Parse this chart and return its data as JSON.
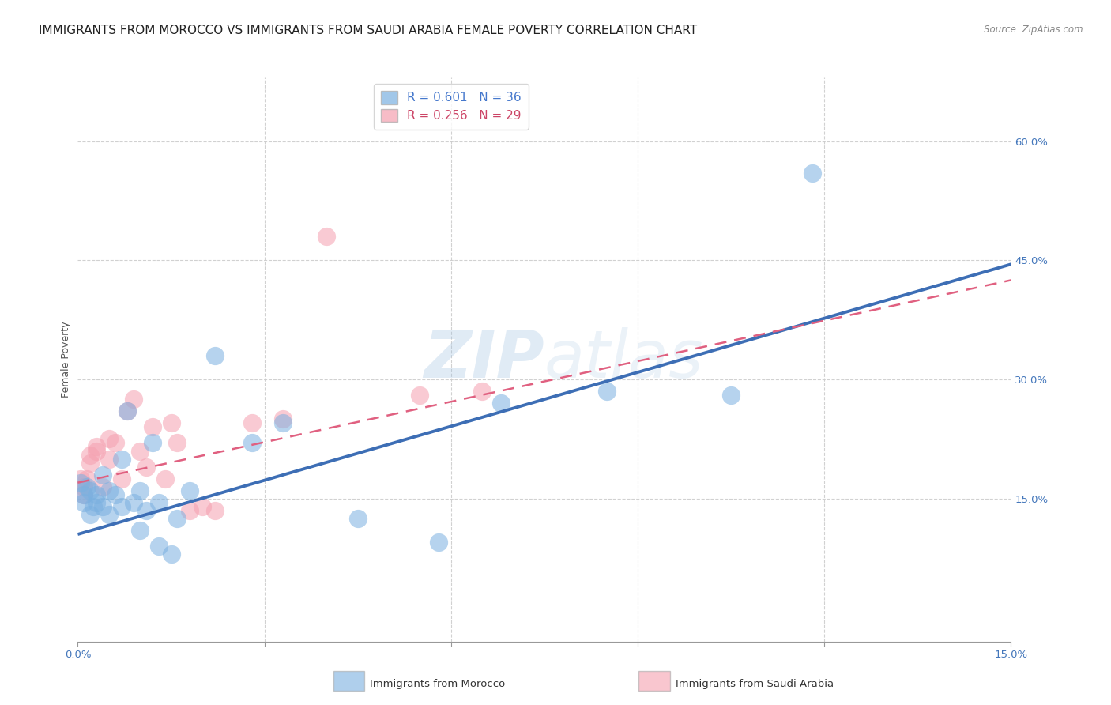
{
  "title": "IMMIGRANTS FROM MOROCCO VS IMMIGRANTS FROM SAUDI ARABIA FEMALE POVERTY CORRELATION CHART",
  "source": "Source: ZipAtlas.com",
  "ylabel": "Female Poverty",
  "xlim": [
    0.0,
    0.15
  ],
  "ylim": [
    -0.03,
    0.68
  ],
  "x_ticks": [
    0.0,
    0.03,
    0.06,
    0.09,
    0.12,
    0.15
  ],
  "x_tick_labels": [
    "0.0%",
    "",
    "",
    "",
    "",
    "15.0%"
  ],
  "y_ticks_right": [
    0.15,
    0.3,
    0.45,
    0.6
  ],
  "y_tick_labels_right": [
    "15.0%",
    "30.0%",
    "45.0%",
    "60.0%"
  ],
  "background_color": "#ffffff",
  "grid_color": "#cccccc",
  "blue_color": "#7ab0e0",
  "pink_color": "#f5a0b0",
  "blue_line_color": "#3d6eb5",
  "pink_line_color": "#e06080",
  "title_fontsize": 11,
  "axis_label_fontsize": 9,
  "tick_fontsize": 9.5,
  "watermark": "ZIPatlas",
  "morocco_x": [
    0.0005,
    0.001,
    0.001,
    0.0015,
    0.002,
    0.002,
    0.0025,
    0.003,
    0.003,
    0.004,
    0.004,
    0.005,
    0.005,
    0.006,
    0.007,
    0.007,
    0.008,
    0.009,
    0.01,
    0.01,
    0.011,
    0.012,
    0.013,
    0.013,
    0.015,
    0.016,
    0.018,
    0.022,
    0.028,
    0.033,
    0.045,
    0.058,
    0.068,
    0.085,
    0.105,
    0.118
  ],
  "morocco_y": [
    0.17,
    0.155,
    0.145,
    0.165,
    0.13,
    0.16,
    0.14,
    0.155,
    0.145,
    0.18,
    0.14,
    0.16,
    0.13,
    0.155,
    0.14,
    0.2,
    0.26,
    0.145,
    0.16,
    0.11,
    0.135,
    0.22,
    0.145,
    0.09,
    0.08,
    0.125,
    0.16,
    0.33,
    0.22,
    0.245,
    0.125,
    0.095,
    0.27,
    0.285,
    0.28,
    0.56
  ],
  "saudi_x": [
    0.0005,
    0.001,
    0.001,
    0.0015,
    0.002,
    0.002,
    0.003,
    0.003,
    0.004,
    0.005,
    0.005,
    0.006,
    0.007,
    0.008,
    0.009,
    0.01,
    0.011,
    0.012,
    0.014,
    0.015,
    0.016,
    0.018,
    0.02,
    0.022,
    0.028,
    0.033,
    0.04,
    0.055,
    0.065
  ],
  "saudi_y": [
    0.175,
    0.165,
    0.155,
    0.175,
    0.195,
    0.205,
    0.215,
    0.21,
    0.165,
    0.2,
    0.225,
    0.22,
    0.175,
    0.26,
    0.275,
    0.21,
    0.19,
    0.24,
    0.175,
    0.245,
    0.22,
    0.135,
    0.14,
    0.135,
    0.245,
    0.25,
    0.48,
    0.28,
    0.285
  ],
  "blue_line_x": [
    0.0,
    0.15
  ],
  "blue_line_y": [
    0.105,
    0.445
  ],
  "pink_line_x": [
    0.0,
    0.15
  ],
  "pink_line_y": [
    0.17,
    0.425
  ]
}
